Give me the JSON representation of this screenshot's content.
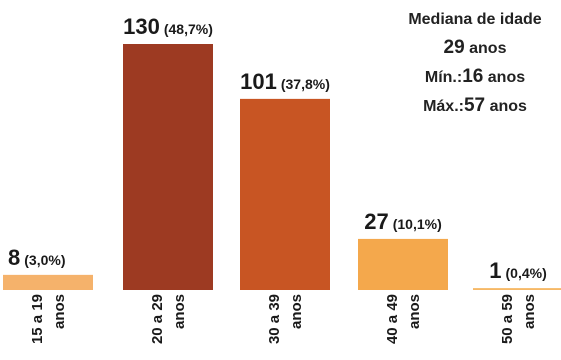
{
  "chart_data": {
    "type": "bar",
    "categories": [
      "15 a 19 anos",
      "20 a 29 anos",
      "30 a 39 anos",
      "40 a 49 anos",
      "50 a 59 anos"
    ],
    "values": [
      8,
      130,
      101,
      27,
      1
    ],
    "percent_labels": [
      "(3,0%)",
      "(48,7%)",
      "(37,8%)",
      "(10,1%)",
      "(0,4%)"
    ],
    "colors": [
      "#f5b26b",
      "#9d3a22",
      "#c85523",
      "#f4a84c",
      "#f6b866"
    ],
    "ylim": [
      0,
      140
    ],
    "title": "",
    "xlabel": "",
    "ylabel": "",
    "grid": false
  },
  "stats": {
    "heading": "Mediana de idade",
    "median_value": "29",
    "median_unit": "anos",
    "min_label": "Mín.:",
    "min_value": "16",
    "min_unit": "anos",
    "max_label": "Máx.:",
    "max_value": "57",
    "max_unit": "anos"
  }
}
